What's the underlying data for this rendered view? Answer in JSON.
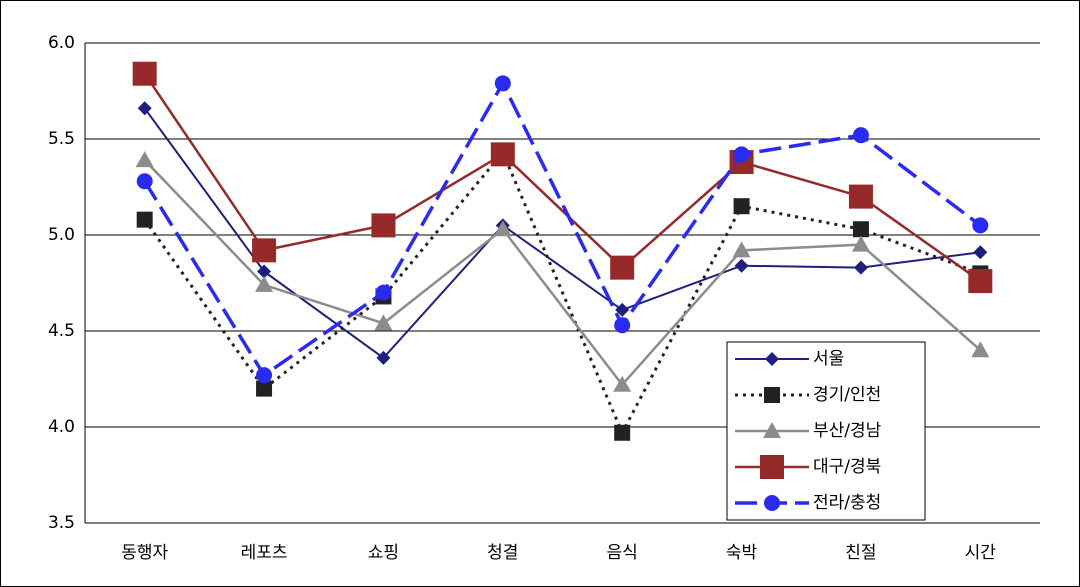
{
  "chart_data": {
    "type": "line",
    "categories": [
      "동행자",
      "레포츠",
      "쇼핑",
      "청결",
      "음식",
      "숙박",
      "친절",
      "시간"
    ],
    "series": [
      {
        "name": "서울",
        "color": "#1f1f80",
        "marker": "diamond",
        "dash": "solid",
        "values": [
          5.66,
          4.81,
          4.36,
          5.05,
          4.61,
          4.84,
          4.83,
          4.91
        ]
      },
      {
        "name": "경기/인천",
        "color": "#222222",
        "marker": "square",
        "dash": "dotted",
        "values": [
          5.08,
          4.2,
          4.68,
          5.43,
          3.97,
          5.15,
          5.03,
          4.8
        ]
      },
      {
        "name": "부산/경남",
        "color": "#8c8c8c",
        "marker": "triangle",
        "dash": "solid",
        "values": [
          5.39,
          4.74,
          4.54,
          5.03,
          4.22,
          4.92,
          4.95,
          4.4
        ]
      },
      {
        "name": "대구/경북",
        "color": "#962a2a",
        "marker": "bigsquare",
        "dash": "solid",
        "values": [
          5.84,
          4.92,
          5.05,
          5.42,
          4.83,
          5.38,
          5.2,
          4.76
        ]
      },
      {
        "name": "전라/충청",
        "color": "#2a2af0",
        "marker": "circle",
        "dash": "dashed",
        "values": [
          5.28,
          4.27,
          4.7,
          5.79,
          4.53,
          5.42,
          5.52,
          5.05
        ]
      }
    ],
    "ylim": [
      3.5,
      6.0
    ],
    "yticks": [
      3.5,
      {
        "value": 4.0,
        "label": "4.0"
      },
      4.5,
      {
        "value": 5.0,
        "label": "5.0"
      },
      5.5,
      {
        "value": 6.0,
        "label": "6.0"
      }
    ],
    "grid": true,
    "legend_position": "lower right"
  }
}
